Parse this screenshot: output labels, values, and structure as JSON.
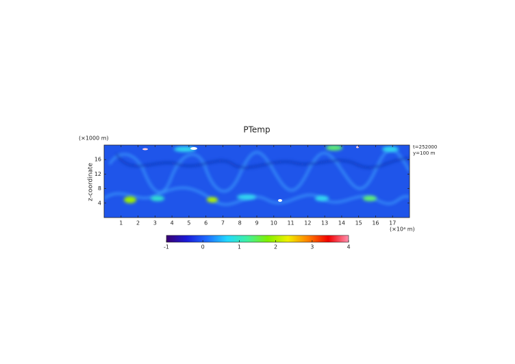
{
  "chart_data": {
    "type": "heatmap",
    "title": "PTemp",
    "y_label": "z-coordinate",
    "y_unit": "(×1000 m)",
    "x_unit": "(×10⁴ m)",
    "annotations": [
      "t=252000",
      "y=100 m"
    ],
    "xlim": [
      0,
      18
    ],
    "xticks": [
      1,
      2,
      3,
      4,
      5,
      6,
      7,
      8,
      9,
      10,
      11,
      12,
      13,
      14,
      15,
      16,
      17
    ],
    "ylim": [
      0,
      20
    ],
    "yticks": [
      4,
      8,
      12,
      16
    ],
    "clim": [
      -1,
      4
    ],
    "cticks": [
      -1,
      0,
      1,
      2,
      3,
      4
    ],
    "colormap": [
      "#3a0070",
      "#1a1ad8",
      "#1e6cff",
      "#22d8ff",
      "#40f0a0",
      "#80f000",
      "#f0f000",
      "#ff8000",
      "#f00000",
      "#ff90b0"
    ]
  }
}
